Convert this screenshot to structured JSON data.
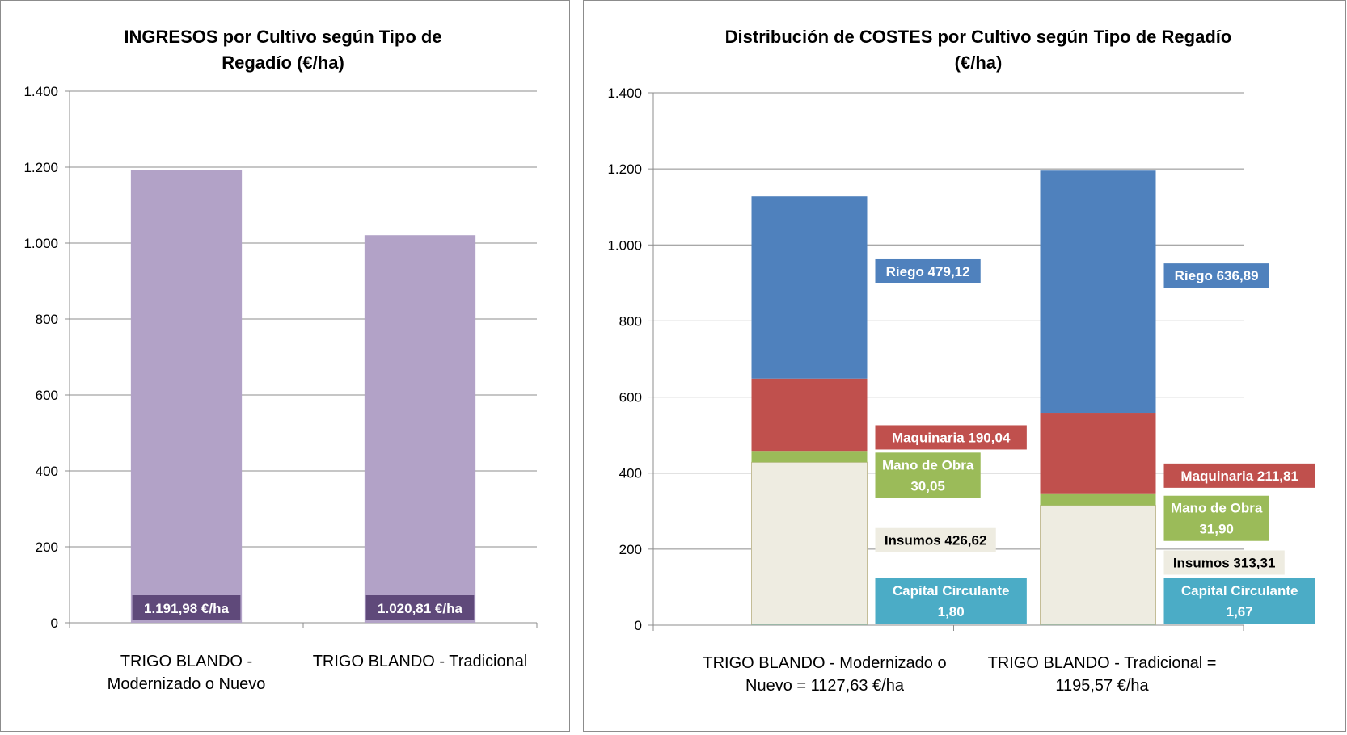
{
  "chart_data": [
    {
      "type": "bar",
      "title": "INGRESOS por Cultivo según Tipo de Regadío (€/ha)",
      "title_lines": [
        "INGRESOS por Cultivo según Tipo de",
        "Regadío (€/ha)"
      ],
      "categories": [
        "TRIGO BLANDO - Modernizado o Nuevo",
        "TRIGO BLANDO - Tradicional"
      ],
      "category_lines": [
        [
          "TRIGO BLANDO -",
          "Modernizado o Nuevo"
        ],
        [
          "TRIGO BLANDO - Tradicional"
        ]
      ],
      "values": [
        1191.98,
        1020.81
      ],
      "data_labels": [
        "1.191,98 €/ha",
        "1.020,81 €/ha"
      ],
      "bar_color": "#b2a2c7",
      "label_bg_color": "#5f497a",
      "ylim": [
        0,
        1400
      ],
      "yticks": [
        0,
        200,
        400,
        600,
        800,
        1000,
        1200,
        1400
      ],
      "ytick_labels": [
        "0",
        "200",
        "400",
        "600",
        "800",
        "1.000",
        "1.200",
        "1.400"
      ],
      "grid": true,
      "xlabel": "",
      "ylabel": ""
    },
    {
      "type": "bar",
      "stacked": true,
      "title": "Distribución de COSTES por Cultivo según Tipo de Regadío (€/ha)",
      "title_lines": [
        "Distribución de COSTES por Cultivo según Tipo de Regadío",
        "(€/ha)"
      ],
      "categories": [
        "TRIGO BLANDO - Modernizado o Nuevo = 1127,63 €/ha",
        "TRIGO BLANDO - Tradicional = 1195,57 €/ha"
      ],
      "category_lines": [
        [
          "TRIGO BLANDO - Modernizado o",
          "Nuevo = 1127,63 €/ha"
        ],
        [
          "TRIGO BLANDO - Tradicional =",
          "1195,57 €/ha"
        ]
      ],
      "series": [
        {
          "key": "capital",
          "color": "#4bacc6",
          "values": [
            1.8,
            1.67
          ],
          "labels": [
            [
              "Capital Circulante",
              "1,80"
            ],
            [
              "Capital Circulante",
              "1,67"
            ]
          ],
          "label_bg": "#4bacc6",
          "label_color": "#ffffff"
        },
        {
          "key": "insumos",
          "color": "#eeece1",
          "values": [
            426.62,
            313.31
          ],
          "labels": [
            [
              "Insumos 426,62"
            ],
            [
              "Insumos 313,31"
            ]
          ],
          "label_bg": "#eeece1",
          "label_color": "#000000"
        },
        {
          "key": "mano",
          "color": "#9bbb59",
          "values": [
            30.05,
            31.9
          ],
          "labels": [
            [
              "Mano de Obra",
              "30,05"
            ],
            [
              "Mano de Obra",
              "31,90"
            ]
          ],
          "label_bg": "#9bbb59",
          "label_color": "#ffffff"
        },
        {
          "key": "maquinaria",
          "color": "#c0504d",
          "values": [
            190.04,
            211.81
          ],
          "labels": [
            [
              "Maquinaria  190,04"
            ],
            [
              "Maquinaria  211,81"
            ]
          ],
          "label_bg": "#c0504d",
          "label_color": "#ffffff"
        },
        {
          "key": "riego",
          "color": "#4f81bd",
          "values": [
            479.12,
            636.89
          ],
          "labels": [
            [
              "Riego 479,12"
            ],
            [
              "Riego 636,89"
            ]
          ],
          "label_bg": "#4f81bd",
          "label_color": "#ffffff"
        }
      ],
      "ylim": [
        0,
        1400
      ],
      "yticks": [
        0,
        200,
        400,
        600,
        800,
        1000,
        1200,
        1400
      ],
      "ytick_labels": [
        "0",
        "200",
        "400",
        "600",
        "800",
        "1.000",
        "1.200",
        "1.400"
      ],
      "grid": true,
      "xlabel": "",
      "ylabel": ""
    }
  ]
}
